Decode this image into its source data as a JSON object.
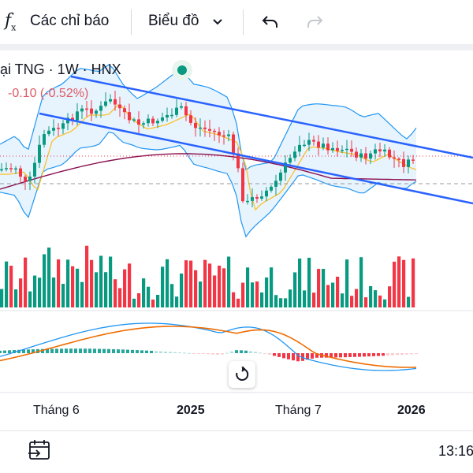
{
  "toolbar": {
    "indicators_icon": "function-fx-icon",
    "indicators_label": "Các chỉ báo",
    "chart_type_label": "Biểu đồ",
    "undo_icon": "undo-icon",
    "redo_icon": "redo-icon"
  },
  "legend": {
    "symbol": "ại TNG · 1W · HNX",
    "change": "-0.10 (-0.52%)",
    "status_color": "#089981"
  },
  "x_axis": {
    "labels": [
      "Tháng 6",
      "2025",
      "Tháng 7",
      "2026"
    ]
  },
  "colors": {
    "up": "#089981",
    "down": "#f23645",
    "trendline": "#2962ff",
    "bollinger_fill": "#e3f2fd",
    "bollinger_line": "#2196f3",
    "ma_long": "#880e4f",
    "ma_short": "#fbc02d",
    "macd": "#2196f3",
    "signal": "#ef6c00"
  },
  "status_bar": {
    "goto_icon": "calendar-goto-icon",
    "time": "13:16"
  }
}
